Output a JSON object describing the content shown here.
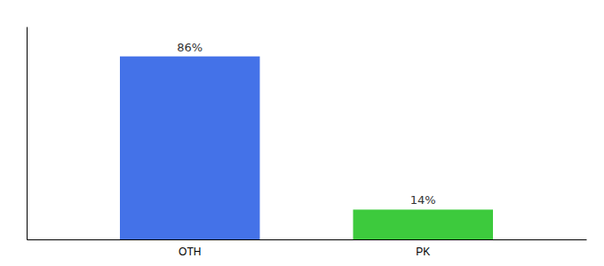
{
  "chart_data": {
    "type": "bar",
    "categories": [
      "OTH",
      "PK"
    ],
    "values": [
      86,
      14
    ],
    "value_labels": [
      "86%",
      "14%"
    ],
    "colors": [
      "#4472e8",
      "#3dca3d"
    ],
    "ylim": [
      0,
      100
    ],
    "data_labels": true,
    "tick_labels": "x"
  }
}
